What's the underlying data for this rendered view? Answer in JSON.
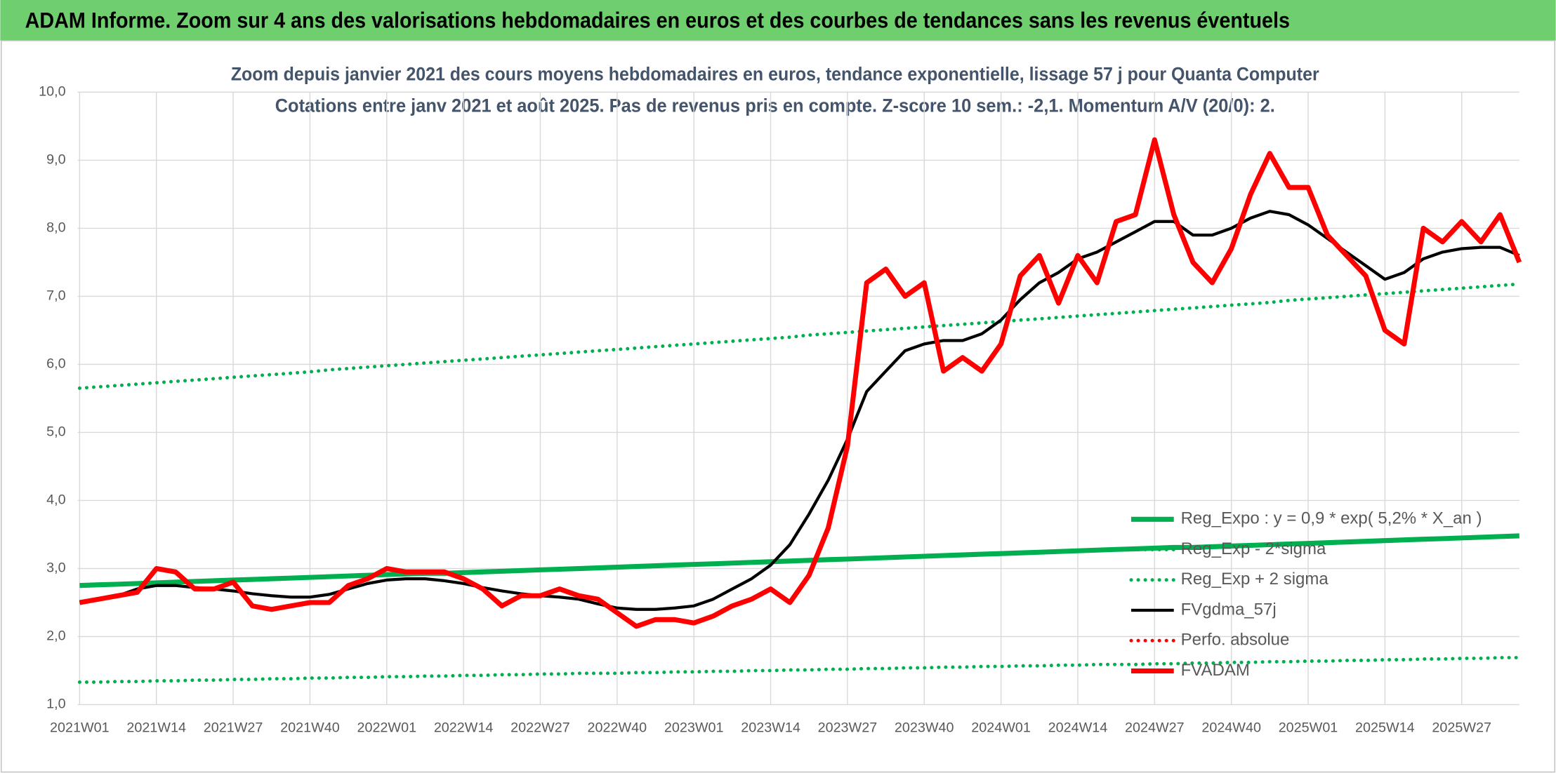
{
  "header": {
    "title": "ADAM Informe. Zoom sur 4 ans des valorisations hebdomadaires en euros et des courbes de tendances sans les revenus éventuels"
  },
  "chart_data": {
    "type": "line",
    "title": "Zoom depuis janvier 2021 des cours moyens hebdomadaires en euros, tendance exponentielle, lissage 57 j pour Quanta Computer",
    "subtitle": "Cotations entre janv 2021 et août 2025. Pas de revenus pris en compte. Z-score 10 sem.: -2,1. Momentum A/V (20/0): 2.",
    "categories": [
      "2021W01",
      null,
      null,
      null,
      "2021W14",
      null,
      null,
      null,
      "2021W27",
      null,
      null,
      null,
      "2021W40",
      null,
      null,
      null,
      "2022W01",
      null,
      null,
      null,
      "2022W14",
      null,
      null,
      null,
      "2022W27",
      null,
      null,
      null,
      "2022W40",
      null,
      null,
      null,
      "2023W01",
      null,
      null,
      null,
      "2023W14",
      null,
      null,
      null,
      "2023W27",
      null,
      null,
      null,
      "2023W40",
      null,
      null,
      null,
      "2024W01",
      null,
      null,
      null,
      "2024W14",
      null,
      null,
      null,
      "2024W27",
      null,
      null,
      null,
      "2024W40",
      null,
      null,
      null,
      "2025W01",
      null,
      null,
      null,
      "2025W14",
      null,
      null,
      null,
      "2025W27",
      null,
      null,
      null
    ],
    "ylim": [
      1,
      10
    ],
    "yticks": [
      {
        "value": 1,
        "label": "1,0"
      },
      {
        "value": 2,
        "label": "2,0"
      },
      {
        "value": 3,
        "label": "3,0"
      },
      {
        "value": 4,
        "label": "4,0"
      },
      {
        "value": 5,
        "label": "5,0"
      },
      {
        "value": 6,
        "label": "6,0"
      },
      {
        "value": 7,
        "label": "7,0"
      },
      {
        "value": 8,
        "label": "8,0"
      },
      {
        "value": 9,
        "label": "9,0"
      },
      {
        "value": 10,
        "label": "10,0"
      }
    ],
    "grid": true,
    "legend": "lower right",
    "series": [
      {
        "name": "Reg_Expo : y = 0,9 * exp( 5,2% *  X_an )",
        "color": "#00b050",
        "style": "solid",
        "values": [
          2.75,
          2.76,
          2.77,
          2.78,
          2.79,
          2.8,
          2.81,
          2.82,
          2.83,
          2.84,
          2.85,
          2.86,
          2.87,
          2.88,
          2.89,
          2.9,
          2.91,
          2.92,
          2.93,
          2.93,
          2.94,
          2.95,
          2.96,
          2.97,
          2.98,
          2.99,
          3.0,
          3.01,
          3.02,
          3.03,
          3.04,
          3.05,
          3.06,
          3.07,
          3.08,
          3.09,
          3.1,
          3.11,
          3.12,
          3.13,
          3.14,
          3.15,
          3.16,
          3.17,
          3.18,
          3.19,
          3.2,
          3.21,
          3.22,
          3.23,
          3.24,
          3.25,
          3.26,
          3.27,
          3.28,
          3.29,
          3.3,
          3.31,
          3.31,
          3.32,
          3.33,
          3.34,
          3.35,
          3.36,
          3.37,
          3.38,
          3.39,
          3.4,
          3.41,
          3.42,
          3.43,
          3.44,
          3.45,
          3.46,
          3.47,
          3.48
        ]
      },
      {
        "name": "Reg_Exp - 2*sigma",
        "color": "#00b050",
        "style": "dotted",
        "values": [
          1.33,
          1.33,
          1.34,
          1.34,
          1.35,
          1.35,
          1.36,
          1.36,
          1.37,
          1.37,
          1.38,
          1.38,
          1.39,
          1.39,
          1.4,
          1.4,
          1.41,
          1.41,
          1.42,
          1.42,
          1.43,
          1.43,
          1.44,
          1.44,
          1.45,
          1.45,
          1.46,
          1.46,
          1.46,
          1.47,
          1.47,
          1.48,
          1.48,
          1.49,
          1.49,
          1.5,
          1.5,
          1.51,
          1.51,
          1.52,
          1.52,
          1.53,
          1.53,
          1.54,
          1.54,
          1.55,
          1.55,
          1.56,
          1.56,
          1.57,
          1.57,
          1.58,
          1.58,
          1.59,
          1.59,
          1.59,
          1.6,
          1.6,
          1.61,
          1.61,
          1.62,
          1.62,
          1.63,
          1.63,
          1.64,
          1.64,
          1.65,
          1.65,
          1.66,
          1.66,
          1.67,
          1.67,
          1.68,
          1.68,
          1.69,
          1.69
        ]
      },
      {
        "name": "Reg_Exp + 2 sigma",
        "color": "#00b050",
        "style": "dotted",
        "values": [
          5.65,
          5.67,
          5.69,
          5.71,
          5.73,
          5.75,
          5.77,
          5.79,
          5.81,
          5.83,
          5.85,
          5.87,
          5.89,
          5.92,
          5.94,
          5.96,
          5.98,
          6.0,
          6.02,
          6.04,
          6.06,
          6.08,
          6.1,
          6.12,
          6.14,
          6.16,
          6.18,
          6.2,
          6.22,
          6.24,
          6.26,
          6.28,
          6.3,
          6.32,
          6.34,
          6.36,
          6.38,
          6.4,
          6.43,
          6.45,
          6.47,
          6.49,
          6.51,
          6.53,
          6.55,
          6.57,
          6.59,
          6.61,
          6.63,
          6.65,
          6.67,
          6.69,
          6.71,
          6.73,
          6.75,
          6.77,
          6.79,
          6.81,
          6.83,
          6.85,
          6.87,
          6.89,
          6.91,
          6.94,
          6.96,
          6.98,
          7.0,
          7.02,
          7.04,
          7.06,
          7.08,
          7.1,
          7.12,
          7.14,
          7.16,
          7.18
        ]
      },
      {
        "name": "FVgdma_57j",
        "color": "#000000",
        "style": "solid",
        "values": [
          2.5,
          2.55,
          2.6,
          2.7,
          2.75,
          2.75,
          2.72,
          2.7,
          2.67,
          2.63,
          2.6,
          2.58,
          2.58,
          2.62,
          2.7,
          2.78,
          2.83,
          2.85,
          2.85,
          2.82,
          2.78,
          2.72,
          2.67,
          2.63,
          2.6,
          2.58,
          2.55,
          2.48,
          2.42,
          2.4,
          2.4,
          2.42,
          2.45,
          2.55,
          2.7,
          2.85,
          3.05,
          3.35,
          3.8,
          4.3,
          4.9,
          5.6,
          5.9,
          6.2,
          6.3,
          6.35,
          6.35,
          6.45,
          6.65,
          6.95,
          7.2,
          7.35,
          7.55,
          7.65,
          7.8,
          7.95,
          8.1,
          8.1,
          7.9,
          7.9,
          8.0,
          8.15,
          8.25,
          8.2,
          8.05,
          7.85,
          7.65,
          7.45,
          7.25,
          7.35,
          7.55,
          7.65,
          7.7,
          7.72,
          7.72,
          7.6
        ]
      },
      {
        "name": "Perfo. absolue",
        "color": "#ff0000",
        "style": "dotted",
        "values": [
          null,
          null,
          null,
          null,
          null,
          null,
          null,
          null,
          null,
          null,
          null,
          null,
          null,
          null,
          null,
          null,
          null,
          null,
          null,
          null,
          null,
          null,
          null,
          null,
          null,
          null,
          null,
          null,
          null,
          null,
          null,
          null,
          null,
          null,
          null,
          null,
          null,
          null,
          null,
          null,
          null,
          null,
          null,
          null,
          null,
          null,
          null,
          null,
          null,
          null,
          null,
          null,
          null,
          null,
          null,
          null,
          null,
          null,
          null,
          null,
          null,
          null,
          null,
          null,
          null,
          null,
          null,
          null,
          null,
          null,
          null,
          null,
          null,
          null,
          null,
          null
        ]
      },
      {
        "name": "FVADAM",
        "color": "#ff0000",
        "style": "solid",
        "values": [
          2.5,
          2.55,
          2.6,
          2.65,
          3.0,
          2.95,
          2.7,
          2.7,
          2.8,
          2.45,
          2.4,
          2.45,
          2.5,
          2.5,
          2.75,
          2.85,
          3.0,
          2.95,
          2.95,
          2.95,
          2.85,
          2.7,
          2.45,
          2.6,
          2.6,
          2.7,
          2.6,
          2.55,
          2.35,
          2.15,
          2.25,
          2.25,
          2.2,
          2.3,
          2.45,
          2.55,
          2.7,
          2.5,
          2.9,
          3.6,
          4.8,
          7.2,
          7.4,
          7.0,
          7.2,
          5.9,
          6.1,
          5.9,
          6.3,
          7.3,
          7.6,
          6.9,
          7.6,
          7.2,
          8.1,
          8.2,
          9.3,
          8.2,
          7.5,
          7.2,
          7.7,
          8.5,
          9.1,
          8.6,
          8.6,
          7.9,
          7.6,
          7.3,
          6.5,
          6.3,
          8.0,
          7.8,
          8.1,
          7.8,
          8.2,
          7.5
        ]
      }
    ]
  }
}
